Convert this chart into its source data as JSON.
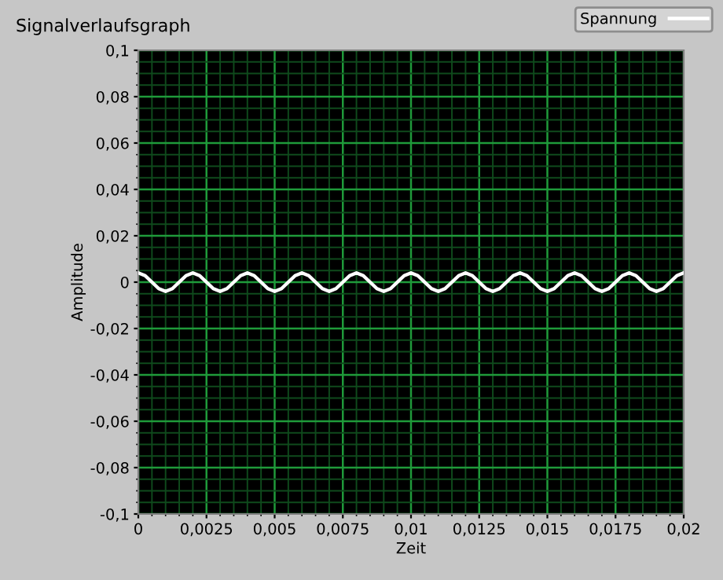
{
  "chart_data": {
    "type": "line",
    "title": "Signalverlaufsgraph",
    "xlabel": "Zeit",
    "ylabel": "Amplitude",
    "series": [
      {
        "name": "Spannung",
        "color": "#ffffff",
        "x": [
          0,
          0.00025,
          0.0005,
          0.00075,
          0.001,
          0.00125,
          0.0015,
          0.00175,
          0.002,
          0.00225,
          0.0025,
          0.00275,
          0.003,
          0.00325,
          0.0035,
          0.00375,
          0.004,
          0.00425,
          0.0045,
          0.00475,
          0.005,
          0.00525,
          0.0055,
          0.00575,
          0.006,
          0.00625,
          0.0065,
          0.00675,
          0.007,
          0.00725,
          0.0075,
          0.00775,
          0.008,
          0.00825,
          0.0085,
          0.00875,
          0.009,
          0.00925,
          0.0095,
          0.00975,
          0.01,
          0.01025,
          0.0105,
          0.01075,
          0.011,
          0.01125,
          0.0115,
          0.01175,
          0.012,
          0.01225,
          0.0125,
          0.01275,
          0.013,
          0.01325,
          0.0135,
          0.01375,
          0.014,
          0.01425,
          0.0145,
          0.01475,
          0.015,
          0.01525,
          0.0155,
          0.01575,
          0.016,
          0.01625,
          0.0165,
          0.01675,
          0.017,
          0.01725,
          0.0175,
          0.01775,
          0.018,
          0.01825,
          0.0185,
          0.01875,
          0.019,
          0.01925,
          0.0195,
          0.01975,
          0.02
        ],
        "values": [
          0.004,
          0.0028,
          0,
          -0.0028,
          -0.004,
          -0.0028,
          0,
          0.0028,
          0.004,
          0.0028,
          0,
          -0.0028,
          -0.004,
          -0.0028,
          0,
          0.0028,
          0.004,
          0.0028,
          0,
          -0.0028,
          -0.004,
          -0.0028,
          0,
          0.0028,
          0.004,
          0.0028,
          0,
          -0.0028,
          -0.004,
          -0.0028,
          0,
          0.0028,
          0.004,
          0.0028,
          0,
          -0.0028,
          -0.004,
          -0.0028,
          0,
          0.0028,
          0.004,
          0.0028,
          0,
          -0.0028,
          -0.004,
          -0.0028,
          0,
          0.0028,
          0.004,
          0.0028,
          0,
          -0.0028,
          -0.004,
          -0.0028,
          0,
          0.0028,
          0.004,
          0.0028,
          0,
          -0.0028,
          -0.004,
          -0.0028,
          0,
          0.0028,
          0.004,
          0.0028,
          0,
          -0.0028,
          -0.004,
          -0.0028,
          0,
          0.0028,
          0.004,
          0.0028,
          0,
          -0.0028,
          -0.004,
          -0.0028,
          0,
          0.0028,
          0.004
        ]
      }
    ],
    "xlim": [
      0,
      0.02
    ],
    "xticks": [
      0,
      {
        "value": 0.0005,
        "label": null
      },
      {
        "value": 0.001,
        "label": null
      },
      {
        "value": 0.0015,
        "label": null
      },
      {
        "value": 0.002,
        "label": null
      },
      {
        "value": 0.003,
        "label": null
      },
      {
        "value": 0.0035,
        "label": null
      },
      {
        "value": 0.004,
        "label": null
      },
      {
        "value": 0.0045,
        "label": null
      },
      {
        "value": 0.0055,
        "label": null
      },
      {
        "value": 0.006,
        "label": null
      },
      {
        "value": 0.0065,
        "label": null
      },
      {
        "value": 0.007,
        "label": null
      },
      {
        "value": 0.008,
        "label": null
      },
      {
        "value": 0.0085,
        "label": null
      },
      {
        "value": 0.009,
        "label": null
      },
      {
        "value": 0.0095,
        "label": null
      },
      {
        "value": 0.0105,
        "label": null
      },
      {
        "value": 0.011,
        "label": null
      },
      {
        "value": 0.0115,
        "label": null
      },
      {
        "value": 0.012,
        "label": null
      },
      {
        "value": 0.013,
        "label": null
      },
      {
        "value": 0.0135,
        "label": null
      },
      {
        "value": 0.014,
        "label": null
      },
      {
        "value": 0.0145,
        "label": null
      },
      {
        "value": 0.0155,
        "label": null
      },
      {
        "value": 0.016,
        "label": null
      },
      {
        "value": 0.0165,
        "label": null
      },
      {
        "value": 0.017,
        "label": null
      },
      {
        "value": 0.018,
        "label": null
      },
      {
        "value": 0.0185,
        "label": null
      },
      {
        "value": 0.019,
        "label": null
      },
      {
        "value": 0.0195,
        "label": null
      },
      {
        "value": 0.0025,
        "label": "0,0025"
      },
      {
        "value": 0.005,
        "label": "0,005"
      },
      {
        "value": 0.0075,
        "label": "0,0075"
      },
      {
        "value": 0.01,
        "label": "0,01"
      },
      {
        "value": 0.0125,
        "label": "0,0125"
      },
      {
        "value": 0.015,
        "label": "0,015"
      },
      {
        "value": 0.0175,
        "label": "0,0175"
      },
      {
        "value": 0.02,
        "label": "0,02"
      }
    ],
    "ylim": [
      -0.1,
      0.1
    ],
    "yticks": [
      {
        "value": -0.095,
        "label": null
      },
      {
        "value": -0.09,
        "label": null
      },
      {
        "value": -0.085,
        "label": null
      },
      {
        "value": -0.075,
        "label": null
      },
      {
        "value": -0.07,
        "label": null
      },
      {
        "value": -0.065,
        "label": null
      },
      {
        "value": -0.055,
        "label": null
      },
      {
        "value": -0.05,
        "label": null
      },
      {
        "value": -0.045,
        "label": null
      },
      {
        "value": -0.035,
        "label": null
      },
      {
        "value": -0.03,
        "label": null
      },
      {
        "value": -0.025,
        "label": null
      },
      {
        "value": -0.015,
        "label": null
      },
      {
        "value": -0.01,
        "label": null
      },
      {
        "value": -0.005,
        "label": null
      },
      {
        "value": 0.005,
        "label": null
      },
      {
        "value": 0.01,
        "label": null
      },
      {
        "value": 0.015,
        "label": null
      },
      {
        "value": 0.025,
        "label": null
      },
      {
        "value": 0.03,
        "label": null
      },
      {
        "value": 0.035,
        "label": null
      },
      {
        "value": 0.045,
        "label": null
      },
      {
        "value": 0.05,
        "label": null
      },
      {
        "value": 0.055,
        "label": null
      },
      {
        "value": 0.065,
        "label": null
      },
      {
        "value": 0.07,
        "label": null
      },
      {
        "value": 0.075,
        "label": null
      },
      {
        "value": 0.085,
        "label": null
      },
      {
        "value": 0.09,
        "label": null
      },
      {
        "value": 0.095,
        "label": null
      },
      {
        "value": -0.1,
        "label": "-0,1"
      },
      {
        "value": -0.08,
        "label": "-0,08"
      },
      {
        "value": -0.06,
        "label": "-0,06"
      },
      {
        "value": -0.04,
        "label": "-0,04"
      },
      {
        "value": -0.02,
        "label": "-0,02"
      },
      0,
      {
        "value": 0.02,
        "label": "0,02"
      },
      {
        "value": 0.04,
        "label": "0,04"
      },
      {
        "value": 0.06,
        "label": "0,06"
      },
      {
        "value": 0.08,
        "label": "0,08"
      },
      {
        "value": 0.1,
        "label": "0,1"
      }
    ],
    "grid": true,
    "legend": "top right",
    "line_style": "solid",
    "marker": "none"
  }
}
